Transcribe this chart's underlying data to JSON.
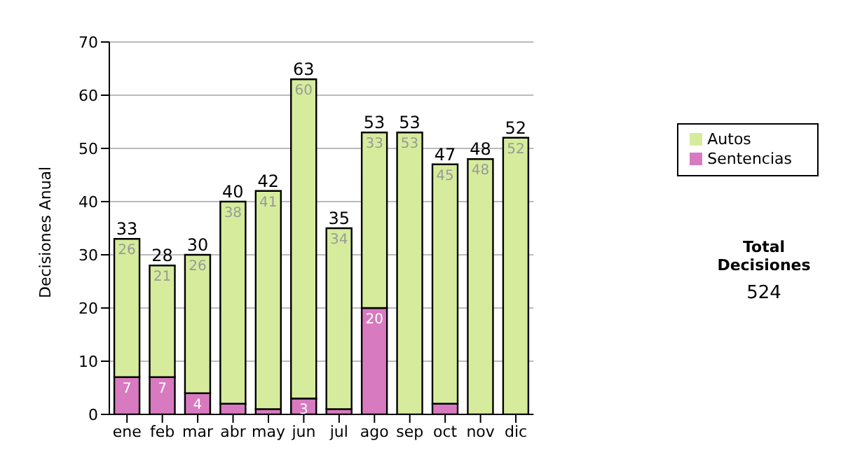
{
  "chart_data": {
    "type": "bar",
    "ylabel": "Decisiones Anual",
    "categories": [
      "ene",
      "feb",
      "mar",
      "abr",
      "may",
      "jun",
      "jul",
      "ago",
      "sep",
      "oct",
      "nov",
      "dic"
    ],
    "stacked": true,
    "series": [
      {
        "name": "Sentencias",
        "color": "#d87ac0",
        "values": [
          7,
          7,
          4,
          2,
          1,
          3,
          1,
          20,
          0,
          2,
          0,
          0
        ],
        "value_labels": [
          "7",
          "7",
          "4",
          null,
          null,
          "3",
          null,
          "20",
          null,
          null,
          null,
          null
        ]
      },
      {
        "name": "Autos",
        "color": "#d6ec9c",
        "values": [
          26,
          21,
          26,
          38,
          41,
          60,
          34,
          33,
          53,
          45,
          48,
          52
        ],
        "value_labels": [
          "26",
          "21",
          "26",
          "38",
          "41",
          "60",
          "34",
          "33",
          "53",
          "45",
          "48",
          "52"
        ]
      }
    ],
    "totals": [
      "33",
      "28",
      "30",
      "40",
      "42",
      "63",
      "35",
      "53",
      "53",
      "47",
      "48",
      "52"
    ],
    "ylim": [
      0,
      70
    ],
    "yticks": [
      0,
      10,
      20,
      30,
      40,
      50,
      60,
      70
    ],
    "grid": "y",
    "legend": "right",
    "annotations": [
      "Total Decisiones",
      "524"
    ]
  }
}
